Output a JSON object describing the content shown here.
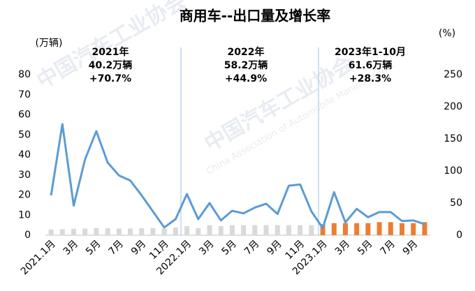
{
  "chart_data": {
    "type": "bar_line",
    "title": "商用车--出口量及增长率",
    "y_label": "(万辆)",
    "y2_label": "(%)",
    "watermark": [
      "中国汽车工业协会",
      "China Association of Automobile Manufacturers"
    ],
    "annotations": [
      [
        "2021年",
        "40.2万辆",
        "+70.7%"
      ],
      [
        "2022年",
        "58.2万辆",
        "+44.9%"
      ],
      [
        "2023年1-10月",
        "61.6万辆",
        "+28.3%"
      ]
    ],
    "categories": [
      "2021.1月",
      null,
      "3月",
      null,
      "5月",
      null,
      "7月",
      null,
      "9月",
      null,
      "11月",
      null,
      "2022.1月",
      null,
      "3月",
      null,
      "5月",
      null,
      "7月",
      null,
      "9月",
      null,
      "11月",
      null,
      "2023.1月",
      null,
      "3月",
      null,
      "5月",
      null,
      "7月",
      null,
      "9月",
      null
    ],
    "series": [
      {
        "type": "bar",
        "color": "#d9d9d9",
        "values": [
          2.8,
          3.0,
          3.2,
          3.3,
          3.5,
          3.5,
          3.3,
          3.3,
          3.5,
          3.5,
          3.3,
          3.8,
          4.5,
          3.5,
          5,
          4.5,
          5,
          5,
          5,
          5,
          5,
          5,
          5,
          5,
          null,
          null,
          null,
          null,
          null,
          null,
          null,
          null,
          null,
          null
        ]
      },
      {
        "type": "bar",
        "color": "#ed7d31",
        "values": [
          null,
          null,
          null,
          null,
          null,
          null,
          null,
          null,
          null,
          null,
          null,
          null,
          null,
          null,
          null,
          null,
          null,
          null,
          null,
          null,
          null,
          null,
          null,
          null,
          5.5,
          6,
          6,
          6,
          6,
          6.5,
          6.5,
          6,
          6,
          6.5
        ]
      },
      {
        "type": "line",
        "axis": "y2",
        "color": "#5b9bd5",
        "values": [
          62,
          173,
          46,
          118,
          162,
          113,
          93,
          85,
          62,
          37,
          12,
          25,
          64,
          25,
          50,
          23,
          38,
          34,
          43,
          49,
          33,
          77,
          79,
          37,
          11,
          67,
          20,
          41,
          28,
          36,
          36,
          22,
          23,
          17
        ]
      }
    ],
    "ylim": [
      0,
      80
    ],
    "yticks": [
      0,
      10,
      20,
      30,
      40,
      50,
      60,
      70,
      80
    ],
    "y2lim": [
      0,
      250
    ],
    "y2ticks": [
      0,
      50,
      100,
      150,
      200,
      250
    ],
    "grid": false
  }
}
